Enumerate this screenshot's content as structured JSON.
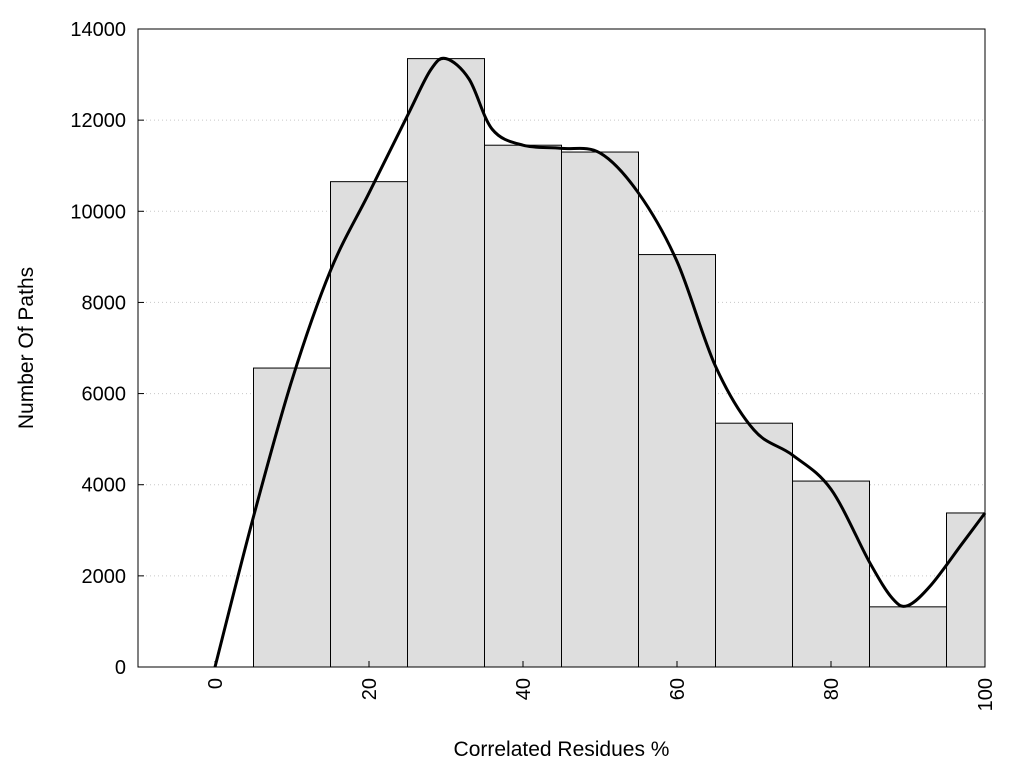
{
  "chart_data": {
    "type": "bar",
    "title": "",
    "xlabel": "Correlated Residues %",
    "ylabel": "Number Of Paths",
    "xlim": [
      -10,
      100
    ],
    "ylim": [
      0,
      14000
    ],
    "x_ticks": [
      0,
      20,
      40,
      60,
      80,
      100
    ],
    "y_ticks": [
      0,
      2000,
      4000,
      6000,
      8000,
      10000,
      12000,
      14000
    ],
    "grid": "horizontal dotted",
    "bar_color": "#dedede",
    "bar_edge_color": "#000000",
    "bins": [
      {
        "start": 5,
        "end": 15,
        "value": 6560
      },
      {
        "start": 15,
        "end": 25,
        "value": 10650
      },
      {
        "start": 25,
        "end": 35,
        "value": 13350
      },
      {
        "start": 35,
        "end": 45,
        "value": 11450
      },
      {
        "start": 45,
        "end": 55,
        "value": 11300
      },
      {
        "start": 55,
        "end": 65,
        "value": 9050
      },
      {
        "start": 65,
        "end": 75,
        "value": 5350
      },
      {
        "start": 75,
        "end": 85,
        "value": 4080
      },
      {
        "start": 85,
        "end": 95,
        "value": 1320
      },
      {
        "start": 95,
        "end": 100,
        "value": 3380
      }
    ],
    "curve": {
      "color": "#000000",
      "points": [
        {
          "x": 0,
          "y": 0
        },
        {
          "x": 5,
          "y": 3300
        },
        {
          "x": 10,
          "y": 6300
        },
        {
          "x": 15,
          "y": 8700
        },
        {
          "x": 20,
          "y": 10400
        },
        {
          "x": 25,
          "y": 12100
        },
        {
          "x": 28,
          "y": 13100
        },
        {
          "x": 30,
          "y": 13350
        },
        {
          "x": 33,
          "y": 12900
        },
        {
          "x": 36,
          "y": 11800
        },
        {
          "x": 40,
          "y": 11450
        },
        {
          "x": 45,
          "y": 11380
        },
        {
          "x": 50,
          "y": 11280
        },
        {
          "x": 55,
          "y": 10400
        },
        {
          "x": 60,
          "y": 8900
        },
        {
          "x": 65,
          "y": 6600
        },
        {
          "x": 70,
          "y": 5200
        },
        {
          "x": 75,
          "y": 4650
        },
        {
          "x": 80,
          "y": 3900
        },
        {
          "x": 85,
          "y": 2300
        },
        {
          "x": 88,
          "y": 1500
        },
        {
          "x": 90,
          "y": 1350
        },
        {
          "x": 93,
          "y": 1800
        },
        {
          "x": 97,
          "y": 2700
        },
        {
          "x": 100,
          "y": 3380
        }
      ]
    }
  }
}
